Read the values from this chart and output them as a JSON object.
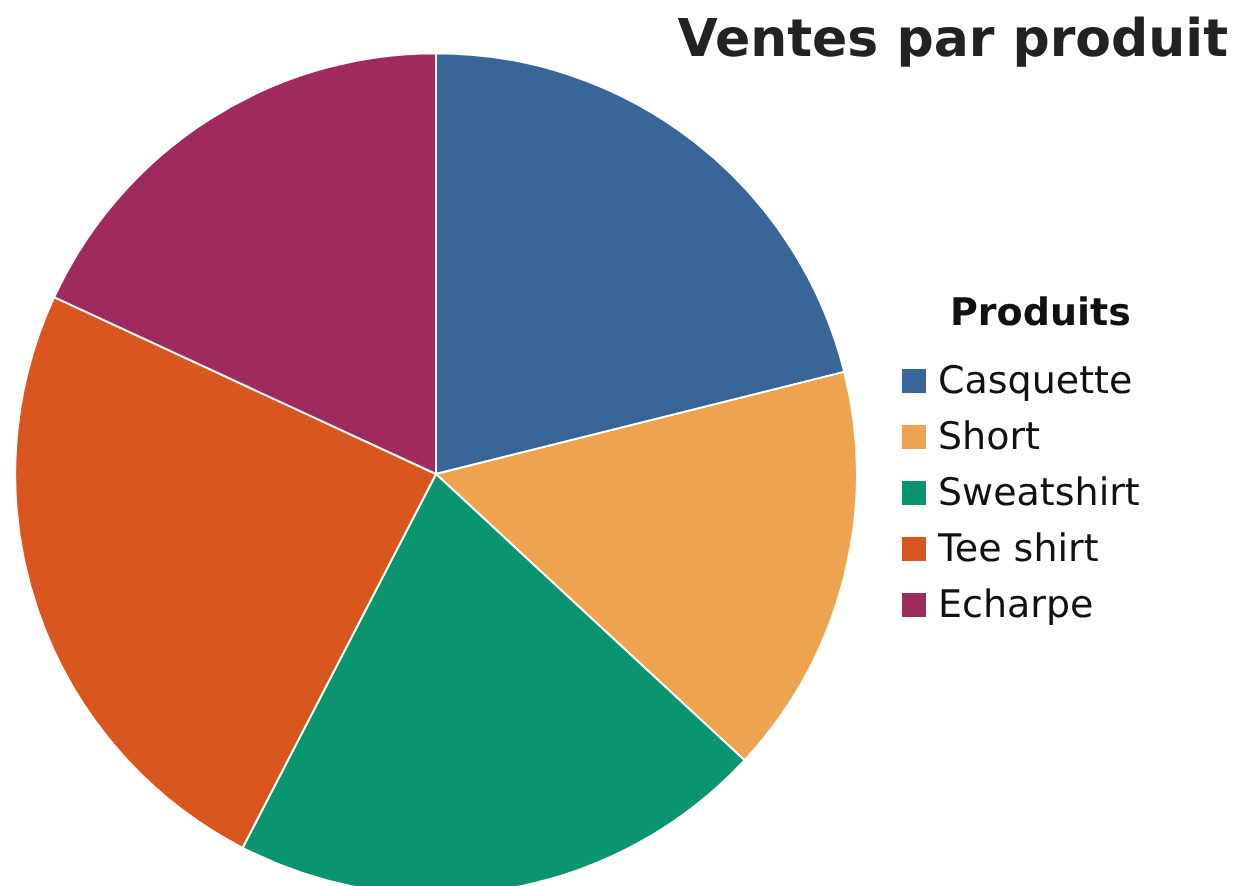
{
  "chart_data": {
    "type": "pie",
    "title": "Ventes par produit",
    "legend_title": "Produits",
    "legend": "right",
    "categories": [
      "Casquette",
      "Short",
      "Sweatshirt",
      "Tee shirt",
      "Echarpe"
    ],
    "values": [
      21.1,
      15.8,
      20.7,
      24.3,
      18.1
    ],
    "colors": [
      "#3a6599",
      "#eda34f",
      "#0a9470",
      "#d9561f",
      "#9e2a5e"
    ]
  }
}
